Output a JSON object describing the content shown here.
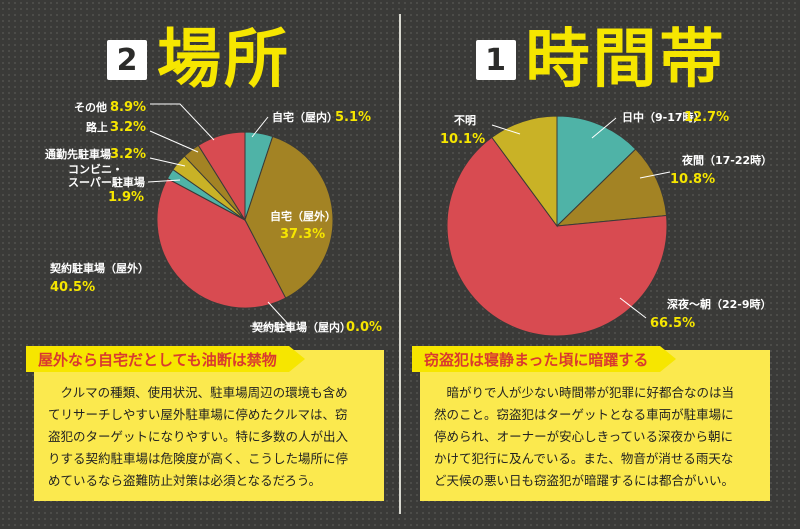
{
  "chart_data": [
    {
      "type": "pie",
      "number": "2",
      "title": "場所",
      "slices": [
        {
          "name": "自宅（屋内）",
          "value": 5.1,
          "pct": "5.1%",
          "color": "#4fb3a7"
        },
        {
          "name": "自宅（屋外）",
          "value": 37.3,
          "pct": "37.3%",
          "color": "#a38324"
        },
        {
          "name": "契約駐車場（屋内）",
          "value": 0.0,
          "pct": "0.0%",
          "color": "#8a8a8a"
        },
        {
          "name": "契約駐車場（屋外）",
          "value": 40.5,
          "pct": "40.5%",
          "color": "#d84b51"
        },
        {
          "name": "コンビニ・スーパー駐車場",
          "value": 1.9,
          "pct": "1.9%",
          "color": "#4fb3a7"
        },
        {
          "name": "通勤先駐車場",
          "value": 3.2,
          "pct": "3.2%",
          "color": "#c9b226"
        },
        {
          "name": "路上",
          "value": 3.2,
          "pct": "3.2%",
          "color": "#a38324"
        },
        {
          "name": "その他",
          "value": 8.9,
          "pct": "8.9%",
          "color": "#d84b51"
        }
      ]
    },
    {
      "type": "pie",
      "number": "1",
      "title": "時間帯",
      "slices": [
        {
          "name": "日中（9-17時）",
          "value": 12.7,
          "pct": "12.7%",
          "color": "#4fb3a7"
        },
        {
          "name": "夜間（17-22時）",
          "value": 10.8,
          "pct": "10.8%",
          "color": "#a38324"
        },
        {
          "name": "深夜〜朝（22-9時）",
          "value": 66.5,
          "pct": "66.5%",
          "color": "#d84b51"
        },
        {
          "name": "不明",
          "value": 10.1,
          "pct": "10.1%",
          "color": "#c9b226"
        }
      ]
    }
  ],
  "left_box": {
    "heading": "屋外なら自宅だとしても油断は禁物",
    "lines": [
      "　クルマの種類、使用状況、駐車場周辺の環境も含め",
      "てリサーチしやすい屋外駐車場に停めたクルマは、窃",
      "盗犯のターゲットになりやすい。特に多数の人が出入",
      "りする契約駐車場は危険度が高く、こうした場所に停",
      "めているなら盗難防止対策は必須となるだろう。"
    ]
  },
  "right_box": {
    "heading": "窃盗犯は寝静まった頃に暗躍する",
    "lines": [
      "　暗がりで人が少ない時間帯が犯罪に好都合なのは当",
      "然のこと。窃盗犯はターゲットとなる車両が駐車場に",
      "停められ、オーナーが安心しきっている深夜から朝に",
      "かけて犯行に及んでいる。また、物音が消せる雨天な",
      "ど天候の悪い日も窃盗犯が暗躍するには都合がいい。"
    ]
  }
}
